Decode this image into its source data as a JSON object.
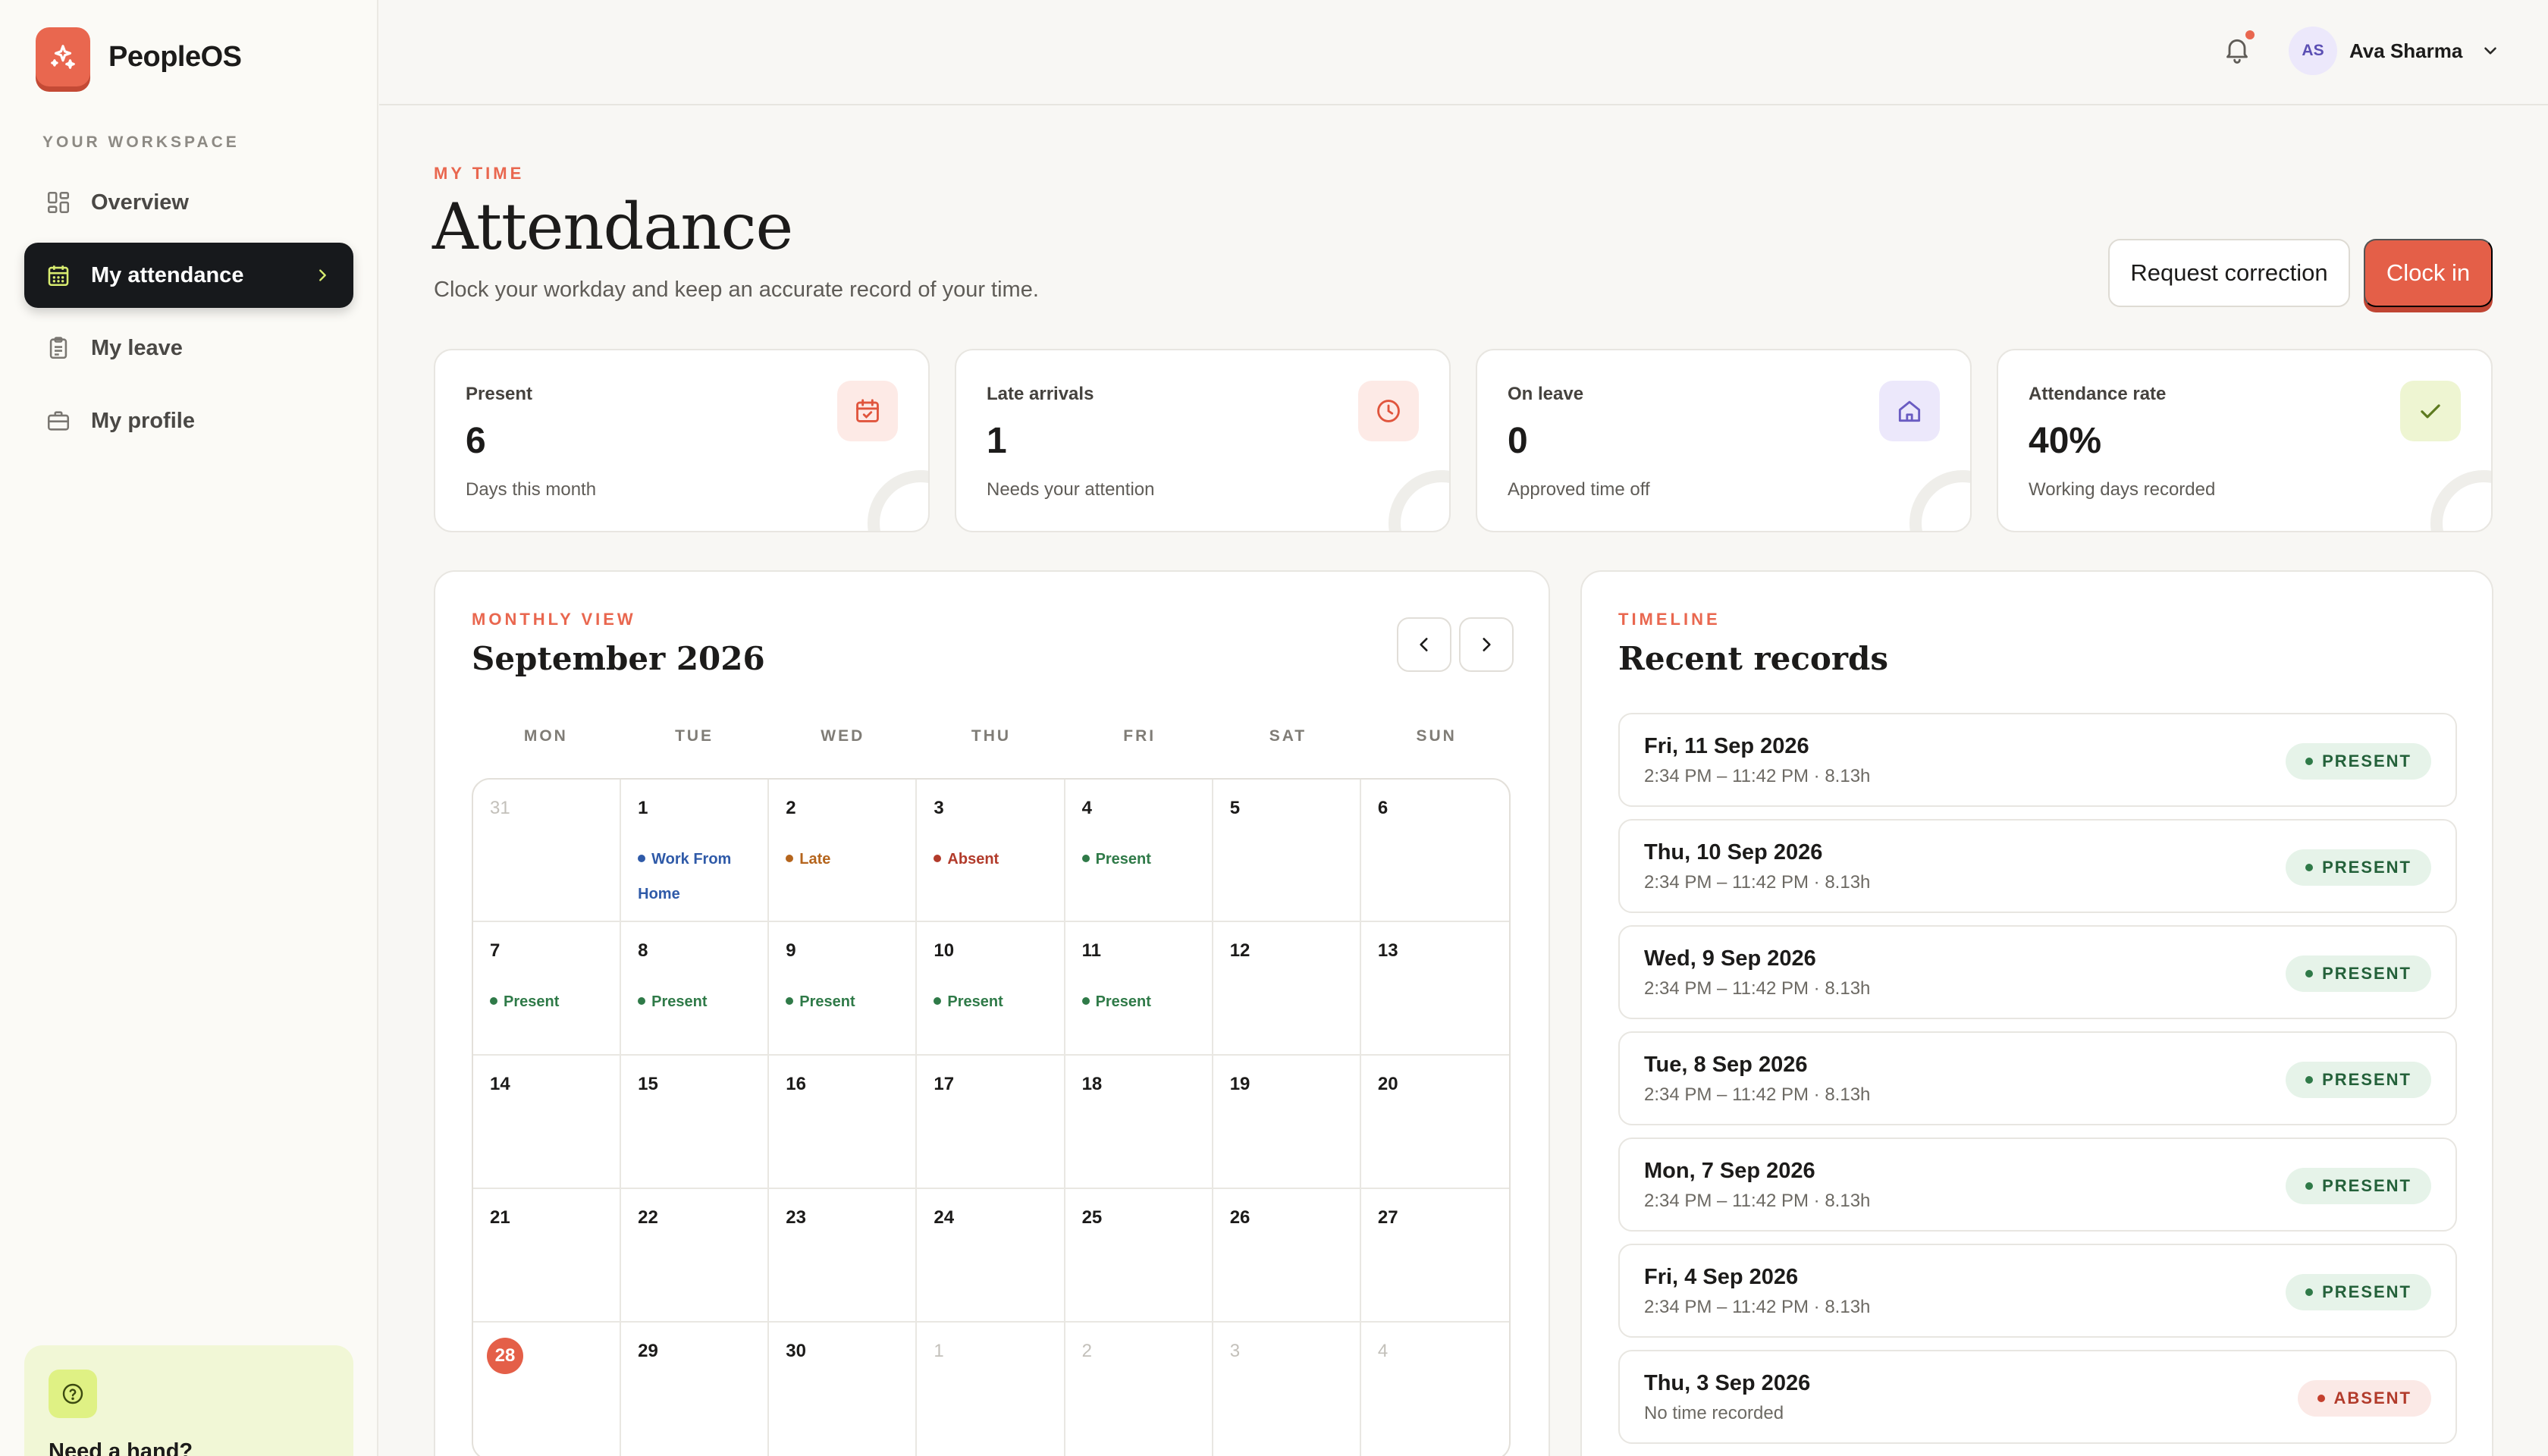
{
  "brand": {
    "name": "PeopleOS",
    "accent": "#e9674f"
  },
  "sidebar": {
    "section_label": "YOUR WORKSPACE",
    "items": [
      {
        "label": "Overview",
        "icon": "grid-icon"
      },
      {
        "label": "My attendance",
        "icon": "calendar-icon",
        "active": true
      },
      {
        "label": "My leave",
        "icon": "clipboard-icon"
      },
      {
        "label": "My profile",
        "icon": "briefcase-icon"
      }
    ],
    "help": {
      "title": "Need a hand?"
    }
  },
  "topbar": {
    "user": {
      "initials": "AS",
      "name": "Ava Sharma"
    },
    "has_notification": true
  },
  "header": {
    "eyebrow": "MY TIME",
    "title": "Attendance",
    "subtitle": "Clock your workday and keep an accurate record of your time.",
    "secondary_button": "Request correction",
    "primary_button": "Clock in"
  },
  "stats": [
    {
      "label": "Present",
      "value": "6",
      "note": "Days this month",
      "icon": "calendar-check-icon",
      "icon_bg": "#fdeae6",
      "icon_color": "#e0553d"
    },
    {
      "label": "Late arrivals",
      "value": "1",
      "note": "Needs your attention",
      "icon": "clock-icon",
      "icon_bg": "#fdeae6",
      "icon_color": "#e0553d"
    },
    {
      "label": "On leave",
      "value": "0",
      "note": "Approved time off",
      "icon": "home-icon",
      "icon_bg": "#ece8fb",
      "icon_color": "#6a5cc2"
    },
    {
      "label": "Attendance rate",
      "value": "40%",
      "note": "Working days recorded",
      "icon": "check-icon",
      "icon_bg": "#eef5d2",
      "icon_color": "#5d7a1f"
    }
  ],
  "calendar": {
    "eyebrow": "MONTHLY VIEW",
    "title": "September 2026",
    "weekdays": [
      "MON",
      "TUE",
      "WED",
      "THU",
      "FRI",
      "SAT",
      "SUN"
    ],
    "status_colors": {
      "Present": "#2f7a48",
      "Late": "#b5651d",
      "Absent": "#b23b2b",
      "Work From Home": "#2f5aa8"
    },
    "days": [
      {
        "num": "31",
        "muted": true
      },
      {
        "num": "1",
        "status": "Work From Home"
      },
      {
        "num": "2",
        "status": "Late"
      },
      {
        "num": "3",
        "status": "Absent"
      },
      {
        "num": "4",
        "status": "Present"
      },
      {
        "num": "5"
      },
      {
        "num": "6"
      },
      {
        "num": "7",
        "status": "Present"
      },
      {
        "num": "8",
        "status": "Present"
      },
      {
        "num": "9",
        "status": "Present"
      },
      {
        "num": "10",
        "status": "Present"
      },
      {
        "num": "11",
        "status": "Present"
      },
      {
        "num": "12"
      },
      {
        "num": "13"
      },
      {
        "num": "14"
      },
      {
        "num": "15"
      },
      {
        "num": "16"
      },
      {
        "num": "17"
      },
      {
        "num": "18"
      },
      {
        "num": "19"
      },
      {
        "num": "20"
      },
      {
        "num": "21"
      },
      {
        "num": "22"
      },
      {
        "num": "23"
      },
      {
        "num": "24"
      },
      {
        "num": "25"
      },
      {
        "num": "26"
      },
      {
        "num": "27"
      },
      {
        "num": "28",
        "today": true
      },
      {
        "num": "29"
      },
      {
        "num": "30"
      },
      {
        "num": "1",
        "muted": true
      },
      {
        "num": "2",
        "muted": true
      },
      {
        "num": "3",
        "muted": true
      },
      {
        "num": "4",
        "muted": true
      }
    ]
  },
  "timeline": {
    "eyebrow": "TIMELINE",
    "title": "Recent records",
    "records": [
      {
        "date": "Fri, 11 Sep 2026",
        "detail": "2:34 PM – 11:42 PM · 8.13h",
        "status": "PRESENT"
      },
      {
        "date": "Thu, 10 Sep 2026",
        "detail": "2:34 PM – 11:42 PM · 8.13h",
        "status": "PRESENT"
      },
      {
        "date": "Wed, 9 Sep 2026",
        "detail": "2:34 PM – 11:42 PM · 8.13h",
        "status": "PRESENT"
      },
      {
        "date": "Tue, 8 Sep 2026",
        "detail": "2:34 PM – 11:42 PM · 8.13h",
        "status": "PRESENT"
      },
      {
        "date": "Mon, 7 Sep 2026",
        "detail": "2:34 PM – 11:42 PM · 8.13h",
        "status": "PRESENT"
      },
      {
        "date": "Fri, 4 Sep 2026",
        "detail": "2:34 PM – 11:42 PM · 8.13h",
        "status": "PRESENT"
      },
      {
        "date": "Thu, 3 Sep 2026",
        "detail": "No time recorded",
        "status": "ABSENT"
      }
    ]
  }
}
